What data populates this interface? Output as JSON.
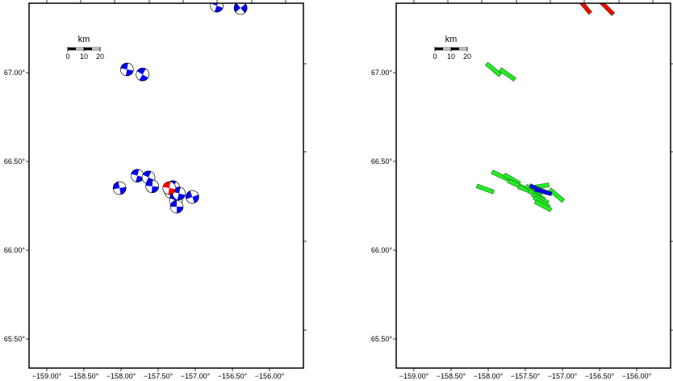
{
  "panels": [
    {
      "id": "focal-mechanisms",
      "lon_ticks": [
        "−159.00°",
        "−158.50°",
        "−158.00°",
        "−157.50°",
        "−157.00°",
        "−156.50°",
        "−156.00°"
      ],
      "lat_ticks": [
        "67.00°",
        "66.50°",
        "66.00°",
        "65.50°"
      ],
      "scale_bar": {
        "unit": "km",
        "labels": [
          "0",
          "10",
          "20"
        ]
      }
    },
    {
      "id": "fault-planes",
      "lon_ticks": [
        "−159.00°",
        "−158.50°",
        "−158.00°",
        "−157.50°",
        "−157.00°",
        "−156.50°",
        "−156.00°"
      ],
      "lat_ticks": [
        "67.00°",
        "66.50°",
        "66.00°",
        "65.50°"
      ],
      "scale_bar": {
        "unit": "km",
        "labels": [
          "0",
          "10",
          "20"
        ]
      }
    }
  ],
  "map": {
    "lon_values": [
      -159.0,
      -158.5,
      -158.0,
      -157.5,
      -157.0,
      -156.5,
      -156.0
    ],
    "lat_values": [
      67.0,
      66.5,
      66.0,
      65.5
    ]
  },
  "colors": {
    "primary": "#0000ee",
    "highlight": "#ff0000",
    "plane": "#22ee22"
  },
  "events": [
    {
      "lon": -156.71,
      "lat": 67.377,
      "color": "primary",
      "rot": 20
    },
    {
      "lon": -156.39,
      "lat": 67.364,
      "color": "primary",
      "rot": -40
    },
    {
      "lon": -157.92,
      "lat": 67.018,
      "color": "primary",
      "rot": 10
    },
    {
      "lon": -157.71,
      "lat": 66.99,
      "color": "primary",
      "rot": 30
    },
    {
      "lon": -158.02,
      "lat": 66.35,
      "color": "primary",
      "rot": -10
    },
    {
      "lon": -157.78,
      "lat": 66.42,
      "color": "primary",
      "rot": 15
    },
    {
      "lon": -157.63,
      "lat": 66.41,
      "color": "primary",
      "rot": 25
    },
    {
      "lon": -157.58,
      "lat": 66.36,
      "color": "primary",
      "rot": 5
    },
    {
      "lon": -157.04,
      "lat": 66.3,
      "color": "primary",
      "rot": -20
    },
    {
      "lon": -157.33,
      "lat": 66.33,
      "color": "primary",
      "rot": 10
    },
    {
      "lon": -157.26,
      "lat": 66.28,
      "color": "primary",
      "rot": 20
    },
    {
      "lon": -157.25,
      "lat": 66.245,
      "color": "primary",
      "rot": 0
    },
    {
      "lon": -157.3,
      "lat": 66.355,
      "color": "primary",
      "rot": 30
    },
    {
      "lon": -157.22,
      "lat": 66.32,
      "color": "primary",
      "rot": 15
    },
    {
      "lon": -157.35,
      "lat": 66.35,
      "color": "highlight",
      "rot": 10
    }
  ],
  "planes": [
    {
      "lon": -156.7,
      "lat": 67.373,
      "strike": 140,
      "color": "highlight"
    },
    {
      "lon": -156.4,
      "lat": 67.364,
      "strike": 135,
      "color": "highlight"
    },
    {
      "lon": -157.93,
      "lat": 67.018,
      "strike": 130,
      "color": "plane"
    },
    {
      "lon": -157.74,
      "lat": 66.99,
      "strike": 125,
      "color": "plane"
    },
    {
      "lon": -158.04,
      "lat": 66.345,
      "strike": 110,
      "color": "plane"
    },
    {
      "lon": -157.84,
      "lat": 66.42,
      "strike": 115,
      "color": "plane"
    },
    {
      "lon": -157.68,
      "lat": 66.4,
      "strike": 120,
      "color": "plane"
    },
    {
      "lon": -157.62,
      "lat": 66.37,
      "strike": 115,
      "color": "plane"
    },
    {
      "lon": -157.48,
      "lat": 66.34,
      "strike": 110,
      "color": "plane"
    },
    {
      "lon": -157.38,
      "lat": 66.34,
      "strike": 115,
      "color": "plane"
    },
    {
      "lon": -157.35,
      "lat": 66.31,
      "strike": 120,
      "color": "plane"
    },
    {
      "lon": -157.3,
      "lat": 66.29,
      "strike": 118,
      "color": "plane"
    },
    {
      "lon": -157.28,
      "lat": 66.27,
      "strike": 122,
      "color": "plane"
    },
    {
      "lon": -157.26,
      "lat": 66.25,
      "strike": 118,
      "color": "plane"
    },
    {
      "lon": -157.3,
      "lat": 66.36,
      "strike": 80,
      "color": "plane"
    },
    {
      "lon": -157.08,
      "lat": 66.31,
      "strike": 130,
      "color": "plane"
    },
    {
      "lon": -157.33,
      "lat": 66.345,
      "strike": 112,
      "color": "primary"
    },
    {
      "lon": -157.26,
      "lat": 66.33,
      "strike": 105,
      "color": "primary"
    }
  ]
}
